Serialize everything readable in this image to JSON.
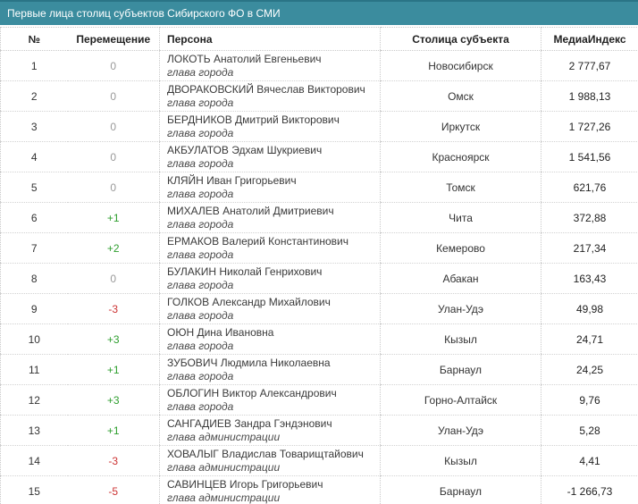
{
  "title": "Первые лица столиц субъектов Сибирского ФО в СМИ",
  "colors": {
    "header_bar": "#3b8c9e",
    "header_bar_border": "#2a7486",
    "movement_positive": "#2e9e2e",
    "movement_negative": "#cc3333",
    "movement_neutral": "#999999"
  },
  "table": {
    "columns": [
      "№",
      "Перемещение",
      "Персона",
      "Столица субъекта",
      "МедиаИндекс"
    ],
    "rows": [
      {
        "num": "1",
        "movement": "0",
        "movement_dir": "neutral",
        "person": "ЛОКОТЬ Анатолий Евгеньевич",
        "role": "глава города",
        "city": "Новосибирск",
        "index": "2 777,67"
      },
      {
        "num": "2",
        "movement": "0",
        "movement_dir": "neutral",
        "person": "ДВОРАКОВСКИЙ Вячеслав Викторович",
        "role": "глава города",
        "city": "Омск",
        "index": "1 988,13"
      },
      {
        "num": "3",
        "movement": "0",
        "movement_dir": "neutral",
        "person": "БЕРДНИКОВ Дмитрий Викторович",
        "role": "глава города",
        "city": "Иркутск",
        "index": "1 727,26"
      },
      {
        "num": "4",
        "movement": "0",
        "movement_dir": "neutral",
        "person": "АКБУЛАТОВ Эдхам Шукриевич",
        "role": "глава города",
        "city": "Красноярск",
        "index": "1 541,56"
      },
      {
        "num": "5",
        "movement": "0",
        "movement_dir": "neutral",
        "person": "КЛЯЙН Иван Григорьевич",
        "role": "глава города",
        "city": "Томск",
        "index": "621,76"
      },
      {
        "num": "6",
        "movement": "+1",
        "movement_dir": "positive",
        "person": "МИХАЛЕВ Анатолий Дмитриевич",
        "role": "глава города",
        "city": "Чита",
        "index": "372,88"
      },
      {
        "num": "7",
        "movement": "+2",
        "movement_dir": "positive",
        "person": "ЕРМАКОВ Валерий Константинович",
        "role": "глава города",
        "city": "Кемерово",
        "index": "217,34"
      },
      {
        "num": "8",
        "movement": "0",
        "movement_dir": "neutral",
        "person": "БУЛАКИН Николай Генрихович",
        "role": "глава города",
        "city": "Абакан",
        "index": "163,43"
      },
      {
        "num": "9",
        "movement": "-3",
        "movement_dir": "negative",
        "person": "ГОЛКОВ Александр Михайлович",
        "role": "глава города",
        "city": "Улан-Удэ",
        "index": "49,98"
      },
      {
        "num": "10",
        "movement": "+3",
        "movement_dir": "positive",
        "person": "ОЮН Дина Ивановна",
        "role": "глава города",
        "city": "Кызыл",
        "index": "24,71"
      },
      {
        "num": "11",
        "movement": "+1",
        "movement_dir": "positive",
        "person": "ЗУБОВИЧ Людмила Николаевна",
        "role": "глава города",
        "city": "Барнаул",
        "index": "24,25"
      },
      {
        "num": "12",
        "movement": "+3",
        "movement_dir": "positive",
        "person": "ОБЛОГИН Виктор Александрович",
        "role": "глава города",
        "city": "Горно-Алтайск",
        "index": "9,76"
      },
      {
        "num": "13",
        "movement": "+1",
        "movement_dir": "positive",
        "person": "САНГАДИЕВ Зандра Гэндэнович",
        "role": "глава администрации",
        "city": "Улан-Удэ",
        "index": "5,28"
      },
      {
        "num": "14",
        "movement": "-3",
        "movement_dir": "negative",
        "person": "ХОВАЛЫГ Владислав Товарищтайович",
        "role": "глава администрации",
        "city": "Кызыл",
        "index": "4,41"
      },
      {
        "num": "15",
        "movement": "-5",
        "movement_dir": "negative",
        "person": "САВИНЦЕВ Игорь Григорьевич",
        "role": "глава администрации",
        "city": "Барнаул",
        "index": "-1 266,73"
      }
    ]
  }
}
